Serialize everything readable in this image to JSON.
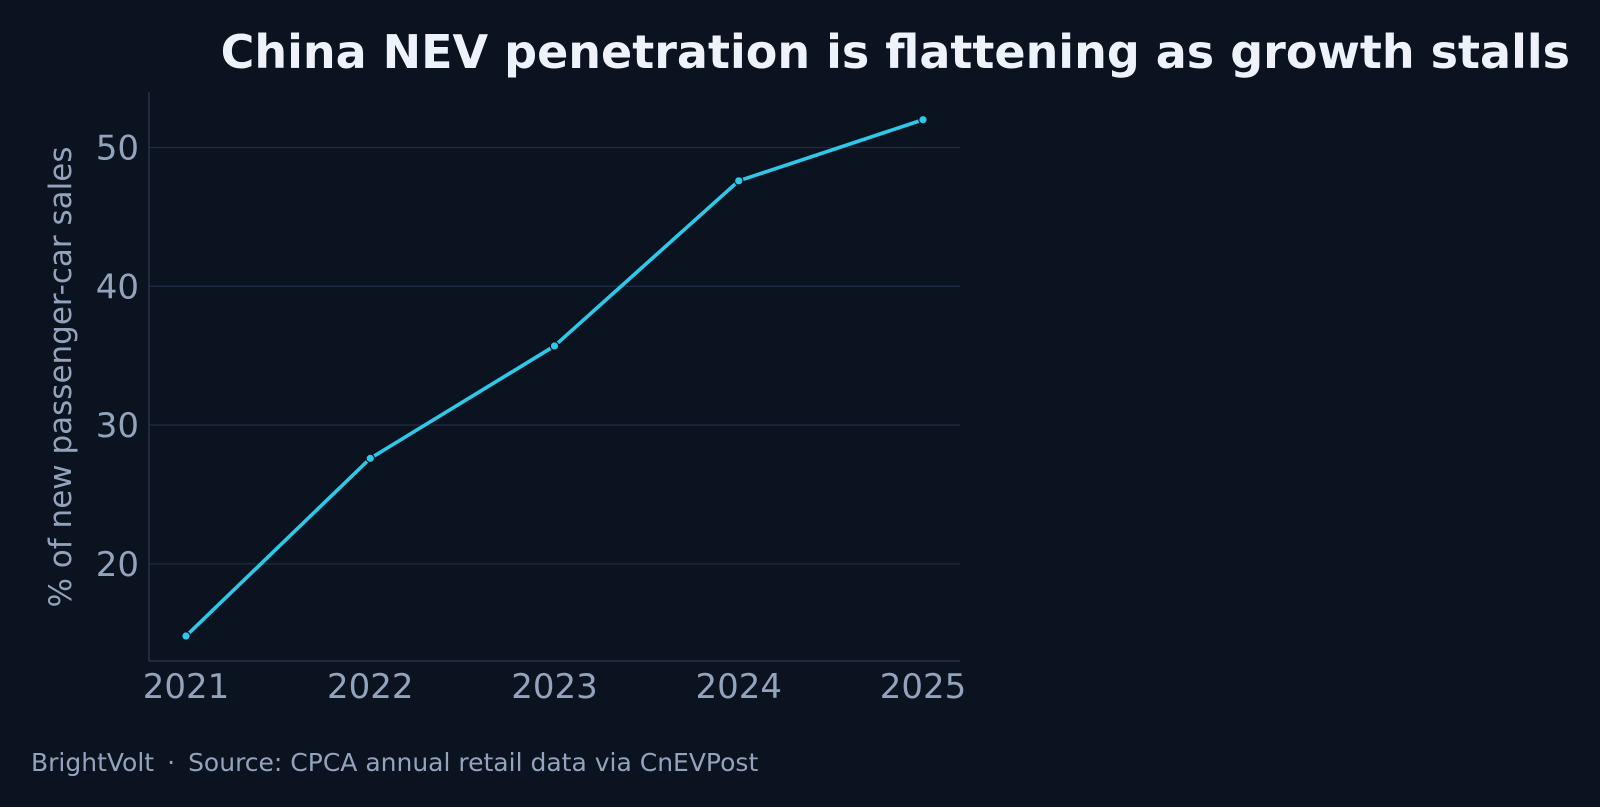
{
  "chart_data": {
    "type": "line",
    "title": "China NEV penetration is flattening as growth stalls",
    "xlabel": "",
    "ylabel": "% of new passenger-car sales",
    "x": [
      "2021",
      "2022",
      "2023",
      "2024",
      "2025"
    ],
    "series": [
      {
        "values": [
          14.8,
          27.6,
          35.7,
          47.6,
          52.0
        ],
        "color": "#2ec9e8"
      }
    ],
    "yticks": [
      20,
      30,
      40,
      50
    ],
    "ylim": [
      13,
      54
    ],
    "grid": true,
    "legend": "none"
  },
  "footer": {
    "brand": "BrightVolt",
    "separator": "·",
    "source": "Source: CPCA annual retail data via CnEVPost"
  }
}
